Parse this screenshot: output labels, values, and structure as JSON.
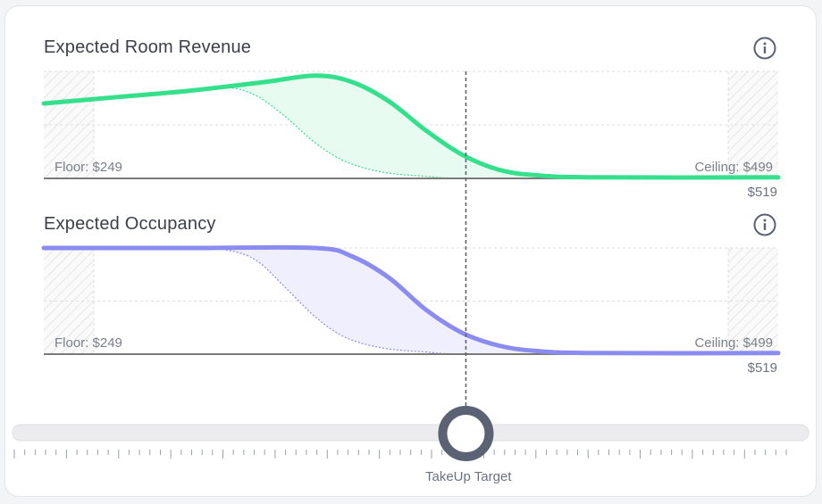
{
  "colors": {
    "revenue": "#34e08c",
    "revenue_fill": "#e8fbf1",
    "occupancy": "#8b8cf0",
    "occupancy_fill": "#efeffd",
    "baseline": "#7a7a7a",
    "grid": "#dadde3",
    "marker": "#5b6273",
    "knob": "#5b6273",
    "track": "#ececee"
  },
  "chart_data": [
    {
      "type": "area",
      "title": "Expected Room Revenue",
      "floor_label": "Floor: $249",
      "ceiling_label": "Ceiling: $499",
      "end_label": "$519",
      "x_range": [
        0,
        1
      ],
      "y_range": [
        0,
        1
      ],
      "grid": true,
      "series": [
        {
          "values": [
            [
              0,
              0.7
            ],
            [
              0.1,
              0.76
            ],
            [
              0.2,
              0.82
            ],
            [
              0.3,
              0.9
            ],
            [
              0.37,
              0.96
            ],
            [
              0.42,
              0.9
            ],
            [
              0.47,
              0.72
            ],
            [
              0.52,
              0.45
            ],
            [
              0.57,
              0.22
            ],
            [
              0.62,
              0.08
            ],
            [
              0.67,
              0.03
            ],
            [
              0.75,
              0.01
            ],
            [
              1,
              0.01
            ]
          ]
        },
        {
          "values": [
            [
              0,
              0.7
            ],
            [
              0.1,
              0.76
            ],
            [
              0.2,
              0.81
            ],
            [
              0.25,
              0.85
            ],
            [
              0.29,
              0.77
            ],
            [
              0.33,
              0.57
            ],
            [
              0.37,
              0.33
            ],
            [
              0.41,
              0.16
            ],
            [
              0.46,
              0.06
            ],
            [
              0.52,
              0.02
            ],
            [
              0.6,
              0
            ],
            [
              1,
              0
            ]
          ]
        }
      ]
    },
    {
      "type": "area",
      "title": "Expected Occupancy",
      "floor_label": "Floor: $249",
      "ceiling_label": "Ceiling: $499",
      "end_label": "$519",
      "x_range": [
        0,
        1
      ],
      "y_range": [
        0,
        1
      ],
      "grid": true,
      "series": [
        {
          "values": [
            [
              0,
              1
            ],
            [
              0.2,
              1
            ],
            [
              0.37,
              1
            ],
            [
              0.42,
              0.92
            ],
            [
              0.47,
              0.72
            ],
            [
              0.52,
              0.42
            ],
            [
              0.57,
              0.2
            ],
            [
              0.62,
              0.08
            ],
            [
              0.67,
              0.03
            ],
            [
              0.75,
              0.01
            ],
            [
              1,
              0.01
            ]
          ]
        },
        {
          "values": [
            [
              0,
              1
            ],
            [
              0.2,
              1
            ],
            [
              0.25,
              0.98
            ],
            [
              0.29,
              0.88
            ],
            [
              0.33,
              0.62
            ],
            [
              0.37,
              0.35
            ],
            [
              0.41,
              0.16
            ],
            [
              0.46,
              0.06
            ],
            [
              0.52,
              0.02
            ],
            [
              0.6,
              0
            ],
            [
              1,
              0
            ]
          ]
        }
      ]
    }
  ],
  "slider": {
    "label": "TakeUp Target",
    "value": 0.585,
    "tick_count": 75
  }
}
